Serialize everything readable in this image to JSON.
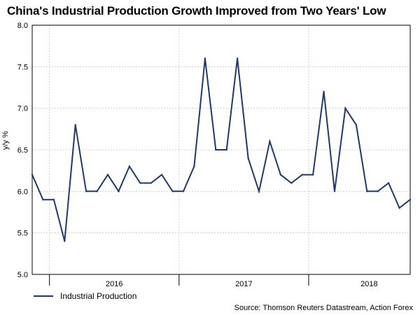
{
  "title": "China's Industrial Production Growth Improved from Two Years' Low",
  "source": "Source: Thomson Reuters Datastream, Action Forex",
  "chart_data": {
    "type": "line",
    "title": "China's Industrial Production Growth Improved from Two Years' Low",
    "xlabel": "",
    "ylabel": "y/y %",
    "ylim": [
      5.0,
      8.0
    ],
    "yticks": [
      "5.0",
      "5.5",
      "6.0",
      "6.5",
      "7.0",
      "7.5",
      "8.0"
    ],
    "xtick_labels": [
      "2016",
      "2017",
      "2018"
    ],
    "grid": true,
    "legend_position": "bottom-left",
    "series": [
      {
        "name": "Industrial Production",
        "color": "#1f3a68",
        "values": [
          6.2,
          5.9,
          5.9,
          5.4,
          6.8,
          6.0,
          6.0,
          6.2,
          6.0,
          6.3,
          6.1,
          6.1,
          6.2,
          6.0,
          6.0,
          6.3,
          7.6,
          6.5,
          6.5,
          7.6,
          6.4,
          6.0,
          6.6,
          6.2,
          6.1,
          6.2,
          6.2,
          7.2,
          6.0,
          7.0,
          6.8,
          6.0,
          6.0,
          6.1,
          5.8,
          5.9
        ]
      }
    ]
  }
}
